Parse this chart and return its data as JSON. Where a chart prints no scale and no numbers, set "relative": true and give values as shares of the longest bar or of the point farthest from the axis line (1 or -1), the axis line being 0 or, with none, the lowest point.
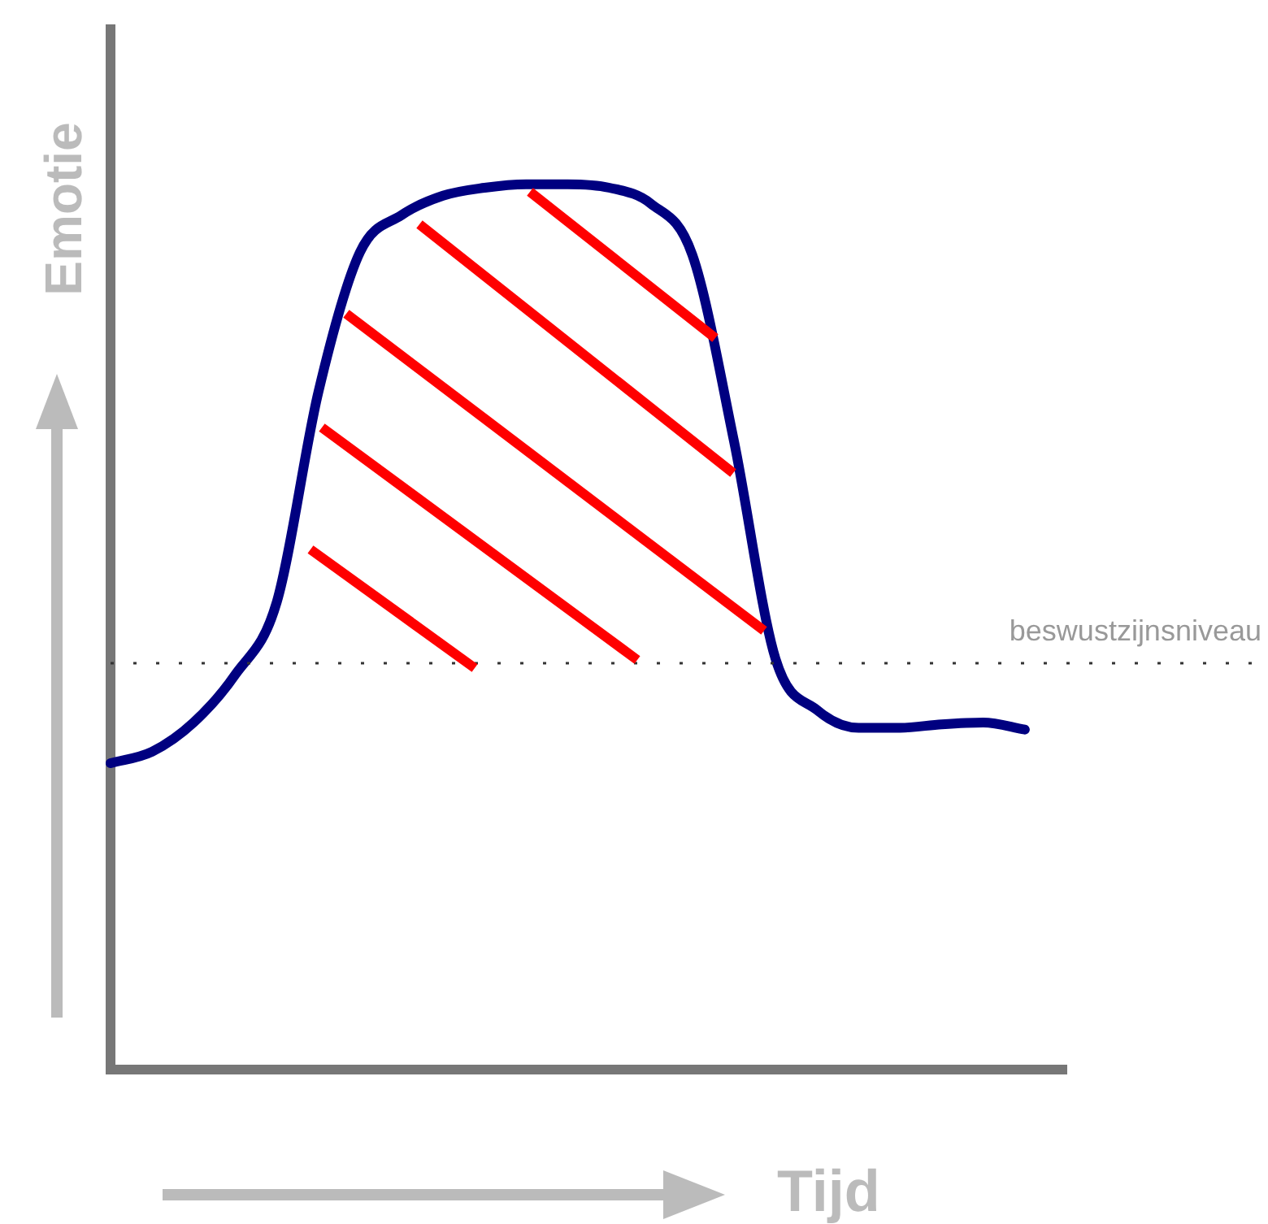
{
  "chart_data": {
    "type": "line",
    "xlabel": "Tijd",
    "ylabel": "Emotie",
    "relative": true,
    "categories": [
      null,
      null,
      null,
      null,
      null,
      null,
      null,
      null,
      null,
      null,
      null,
      null,
      null,
      null,
      null,
      null,
      null,
      null,
      null,
      null,
      null,
      null,
      null,
      null
    ],
    "series": [
      {
        "color": "#000080",
        "values": [
          0.346,
          0.359,
          0.392,
          0.446,
          0.528,
          0.765,
          0.923,
          0.965,
          0.987,
          0.996,
          1,
          1,
          0.996,
          0.978,
          0.92,
          0.71,
          0.464,
          0.406,
          0.386,
          0.386,
          0.39,
          0.392,
          0.384,
          null
        ]
      }
    ],
    "ref_lines": [
      {
        "axis": "y",
        "value": 0.459,
        "label": "beswustzijnsniveau",
        "color": "#333333",
        "line_style": "dotted"
      }
    ],
    "legend": false,
    "grid": false,
    "marker": "none",
    "line_style": "solid"
  }
}
